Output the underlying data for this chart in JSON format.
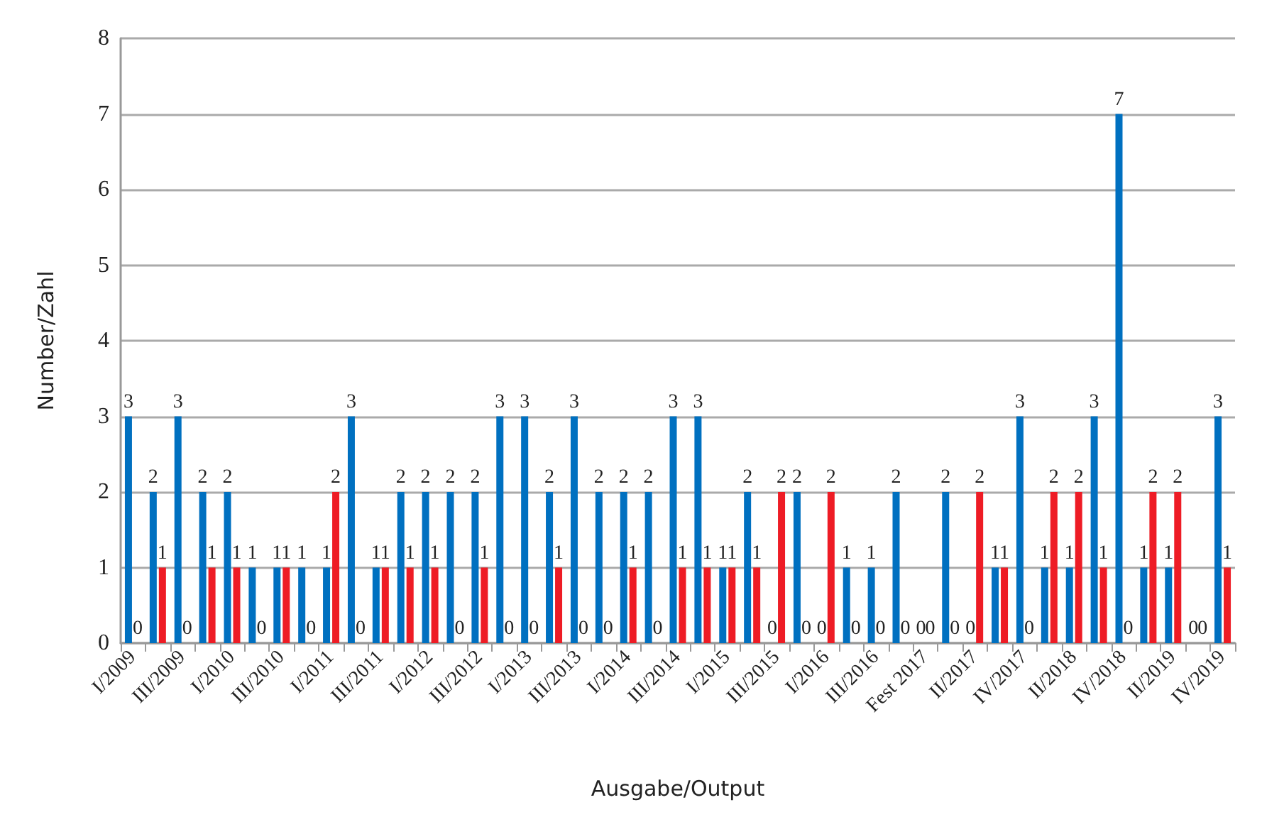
{
  "chart_data": {
    "type": "bar",
    "xlabel": "Ausgabe/Output",
    "ylabel": "Number/Zahl",
    "categories": [
      "I/2009",
      null,
      "III/2009",
      null,
      "I/2010",
      null,
      "III/2010",
      null,
      "I/2011",
      null,
      "III/2011",
      null,
      "I/2012",
      null,
      "III/2012",
      null,
      "I/2013",
      null,
      "III/2013",
      null,
      "I/2014",
      null,
      "III/2014",
      null,
      "I/2015",
      null,
      "III/2015",
      null,
      "I/2016",
      null,
      "III/2016",
      null,
      "Fest 2017",
      null,
      "II/2017",
      null,
      "IV/2017",
      null,
      "II/2018",
      null,
      "IV/2018",
      null,
      "II/2019",
      null,
      "IV/2019"
    ],
    "series": [
      {
        "color": "#0070c0",
        "values": [
          3,
          2,
          3,
          2,
          2,
          1,
          1,
          1,
          1,
          3,
          1,
          2,
          2,
          2,
          2,
          3,
          3,
          2,
          3,
          2,
          2,
          2,
          3,
          3,
          1,
          2,
          0,
          2,
          0,
          1,
          1,
          2,
          0,
          2,
          0,
          1,
          3,
          1,
          1,
          3,
          7,
          1,
          1,
          0,
          3
        ]
      },
      {
        "color": "#ee1c25",
        "values": [
          0,
          1,
          0,
          1,
          1,
          0,
          1,
          0,
          2,
          0,
          1,
          1,
          1,
          0,
          1,
          0,
          0,
          1,
          0,
          0,
          1,
          0,
          1,
          1,
          1,
          1,
          2,
          0,
          2,
          0,
          0,
          0,
          0,
          0,
          2,
          1,
          0,
          2,
          2,
          1,
          0,
          2,
          2,
          0,
          1
        ]
      }
    ],
    "ylim": [
      0,
      8
    ],
    "yticks": [
      0,
      1,
      2,
      3,
      4,
      5,
      6,
      7,
      8
    ],
    "grid": "y",
    "data_labels": true
  }
}
